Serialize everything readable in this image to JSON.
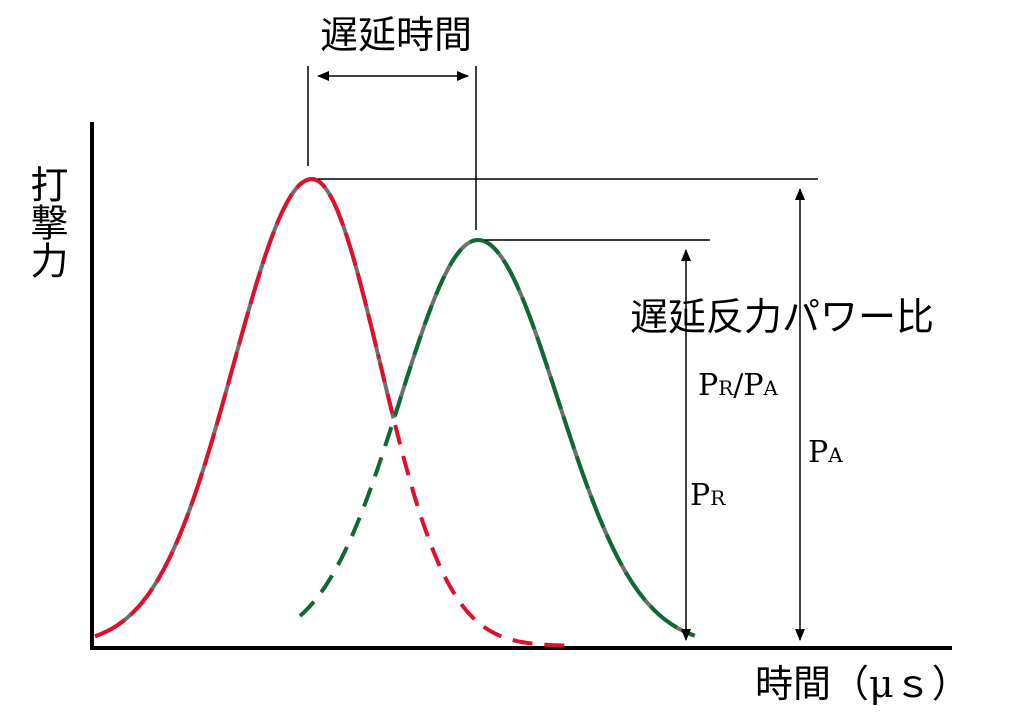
{
  "diagram": {
    "delay_label": "遅延時間",
    "y_axis_label": "打撃力",
    "x_axis_label": "時間（μｓ）",
    "ratio_title": "遅延反力パワー比",
    "ratio_label": {
      "p": "P",
      "r": "R",
      "slash": "/P",
      "a": "A"
    },
    "pr_label": {
      "p": "P",
      "sub": "R"
    },
    "pa_label": {
      "p": "P",
      "sub": "A"
    },
    "colors": {
      "axis": "#000000",
      "sum_curve": "#707070",
      "primary_pulse": "#e0102a",
      "delayed_pulse": "#0e6a32"
    }
  }
}
